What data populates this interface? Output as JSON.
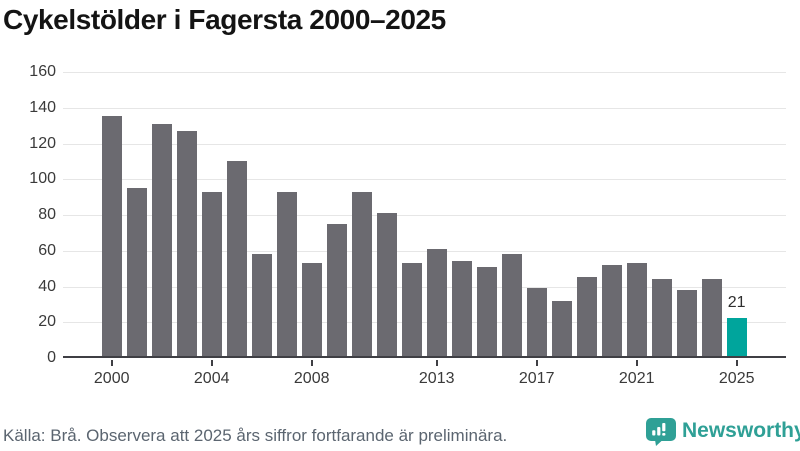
{
  "title": "Cykelstölder i Fagersta 2000–2025",
  "chart_data": {
    "type": "bar",
    "title": "Cykelstölder i Fagersta 2000–2025",
    "categories": [
      2000,
      2001,
      2002,
      2003,
      2004,
      2005,
      2006,
      2007,
      2008,
      2009,
      2010,
      2011,
      2012,
      2013,
      2014,
      2015,
      2016,
      2017,
      2018,
      2019,
      2020,
      2021,
      2022,
      2023,
      2024,
      2025
    ],
    "values": [
      134,
      94,
      130,
      126,
      92,
      109,
      57,
      92,
      52,
      74,
      92,
      80,
      52,
      60,
      53,
      50,
      57,
      38,
      31,
      44,
      51,
      52,
      43,
      37,
      43,
      21
    ],
    "highlight_index": 25,
    "highlight_label": "21",
    "x_ticks": [
      2000,
      2004,
      2008,
      2013,
      2017,
      2021,
      2025
    ],
    "ylim": [
      0,
      160
    ],
    "y_tick_step": 20,
    "xlabel": "",
    "ylabel": "",
    "grid": true,
    "legend": false
  },
  "colors": {
    "bar": "#6b6a70",
    "highlight": "#00a59c",
    "axis": "#3f3f44",
    "grid": "#e6e6e6",
    "tick_label": "#3a3a3a",
    "title": "#141414",
    "footer_text": "#5b6570",
    "brand": "#2fa096"
  },
  "footer": {
    "source": "Källa: Brå. Observera att 2025 års siffror fortfarande är preliminära.",
    "brand_name": "Newsworthy"
  },
  "icons": {
    "brand": "newsworthy-chart-speech-bubble-icon"
  }
}
